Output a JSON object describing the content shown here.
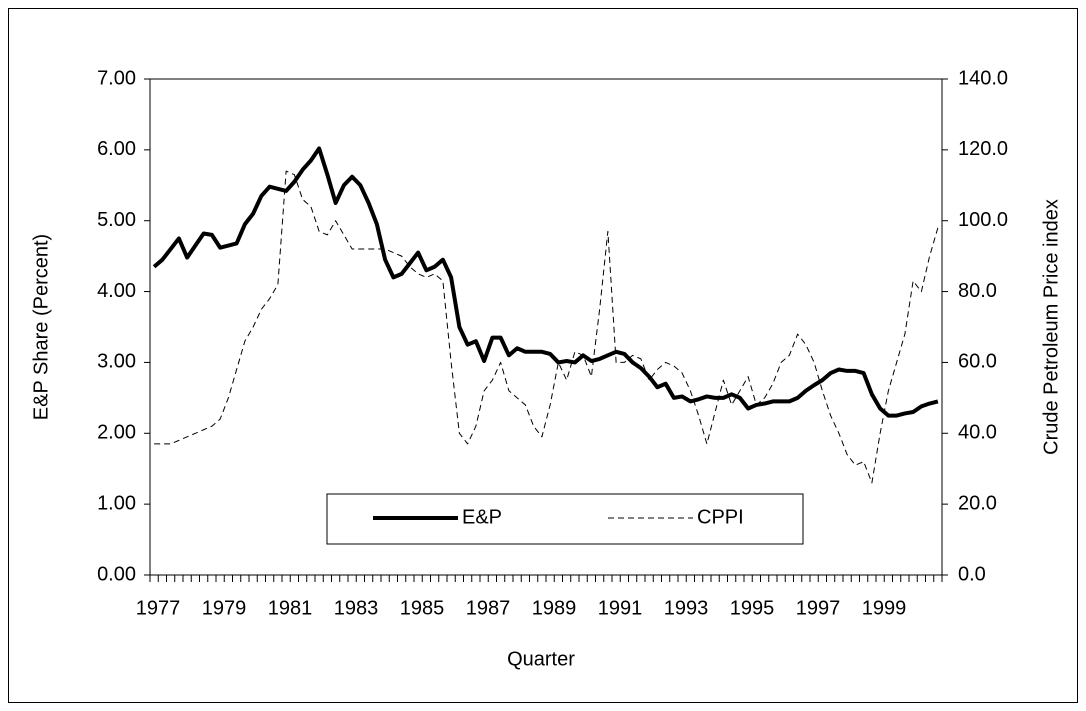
{
  "chart_data": {
    "type": "line",
    "x_label": "Quarter",
    "y_label": "E&P Share  (Percent)",
    "y2_label": "Crude Petroleum Price index",
    "categories": [
      "1977",
      null,
      null,
      null,
      null,
      null,
      null,
      null,
      "1979",
      null,
      null,
      null,
      null,
      null,
      null,
      null,
      "1981",
      null,
      null,
      null,
      null,
      null,
      null,
      null,
      "1983",
      null,
      null,
      null,
      null,
      null,
      null,
      null,
      "1985",
      null,
      null,
      null,
      null,
      null,
      null,
      null,
      "1987",
      null,
      null,
      null,
      null,
      null,
      null,
      null,
      "1989",
      null,
      null,
      null,
      null,
      null,
      null,
      null,
      "1991",
      null,
      null,
      null,
      null,
      null,
      null,
      null,
      "1993",
      null,
      null,
      null,
      null,
      null,
      null,
      null,
      "1995",
      null,
      null,
      null,
      null,
      null,
      null,
      null,
      "1997",
      null,
      null,
      null,
      null,
      null,
      null,
      null,
      "1999",
      null,
      null,
      null,
      null,
      null,
      null,
      null
    ],
    "series": [
      {
        "name": "E&P",
        "color": "#000000",
        "style": "solid",
        "axis": "y",
        "values": [
          4.35,
          4.45,
          4.6,
          4.75,
          4.48,
          4.65,
          4.82,
          4.8,
          4.62,
          4.65,
          4.68,
          4.95,
          5.1,
          5.35,
          5.48,
          5.45,
          5.42,
          5.55,
          5.72,
          5.85,
          6.02,
          5.65,
          5.25,
          5.5,
          5.62,
          5.5,
          5.25,
          4.95,
          4.45,
          4.2,
          4.25,
          4.4,
          4.55,
          4.3,
          4.35,
          4.45,
          4.2,
          3.5,
          3.25,
          3.3,
          3.02,
          3.35,
          3.35,
          3.1,
          3.2,
          3.15,
          3.15,
          3.15,
          3.12,
          3.0,
          3.02,
          3.0,
          3.1,
          3.02,
          3.05,
          3.1,
          3.15,
          3.12,
          3.0,
          2.92,
          2.8,
          2.65,
          2.7,
          2.5,
          2.52,
          2.45,
          2.48,
          2.52,
          2.5,
          2.5,
          2.55,
          2.5,
          2.35,
          2.4,
          2.42,
          2.45,
          2.45,
          2.45,
          2.5,
          2.6,
          2.68,
          2.75,
          2.85,
          2.9,
          2.88,
          2.88,
          2.85,
          2.55,
          2.35,
          2.25,
          2.25,
          2.28,
          2.3,
          2.38,
          2.42,
          2.45
        ]
      },
      {
        "name": "CPPI",
        "color": "#000000",
        "style": "dashed",
        "axis": "y2",
        "values": [
          37,
          37,
          37,
          38,
          39,
          40,
          41,
          42,
          44,
          50,
          58,
          66,
          70,
          75,
          78,
          82,
          114,
          113,
          106,
          104,
          97,
          96,
          100,
          96,
          92,
          92,
          92,
          92,
          92,
          91,
          90,
          87,
          85,
          84,
          85,
          83,
          60,
          40,
          37,
          42,
          52,
          55,
          60,
          52,
          50,
          48,
          42,
          39,
          48,
          60,
          55,
          63,
          62,
          56,
          75,
          97,
          60,
          60,
          62,
          61,
          55,
          58,
          60,
          59,
          57,
          52,
          45,
          37,
          46,
          55,
          48,
          52,
          56,
          48,
          50,
          54,
          60,
          62,
          68,
          65,
          60,
          52,
          45,
          40,
          34,
          31,
          32,
          26,
          40,
          52,
          60,
          68,
          83,
          80,
          90,
          98
        ]
      }
    ],
    "ylim": [
      0,
      7
    ],
    "yticks": [
      {
        "value": 0,
        "label": "0.00"
      },
      {
        "value": 1,
        "label": "1.00"
      },
      {
        "value": 2,
        "label": "2.00"
      },
      {
        "value": 3,
        "label": "3.00"
      },
      {
        "value": 4,
        "label": "4.00"
      },
      {
        "value": 5,
        "label": "5.00"
      },
      {
        "value": 6,
        "label": "6.00"
      },
      {
        "value": 7,
        "label": "7.00"
      }
    ],
    "y2lim": [
      0,
      140
    ],
    "y2ticks": [
      {
        "value": 0,
        "label": "0.0"
      },
      {
        "value": 20,
        "label": "20.0"
      },
      {
        "value": 40,
        "label": "40.0"
      },
      {
        "value": 60,
        "label": "60.0"
      },
      {
        "value": 80,
        "label": "80.0"
      },
      {
        "value": 100,
        "label": "100.0"
      },
      {
        "value": 120,
        "label": "120.0"
      },
      {
        "value": 140,
        "label": "140.0"
      }
    ],
    "grid": false,
    "legend": "bottom"
  }
}
